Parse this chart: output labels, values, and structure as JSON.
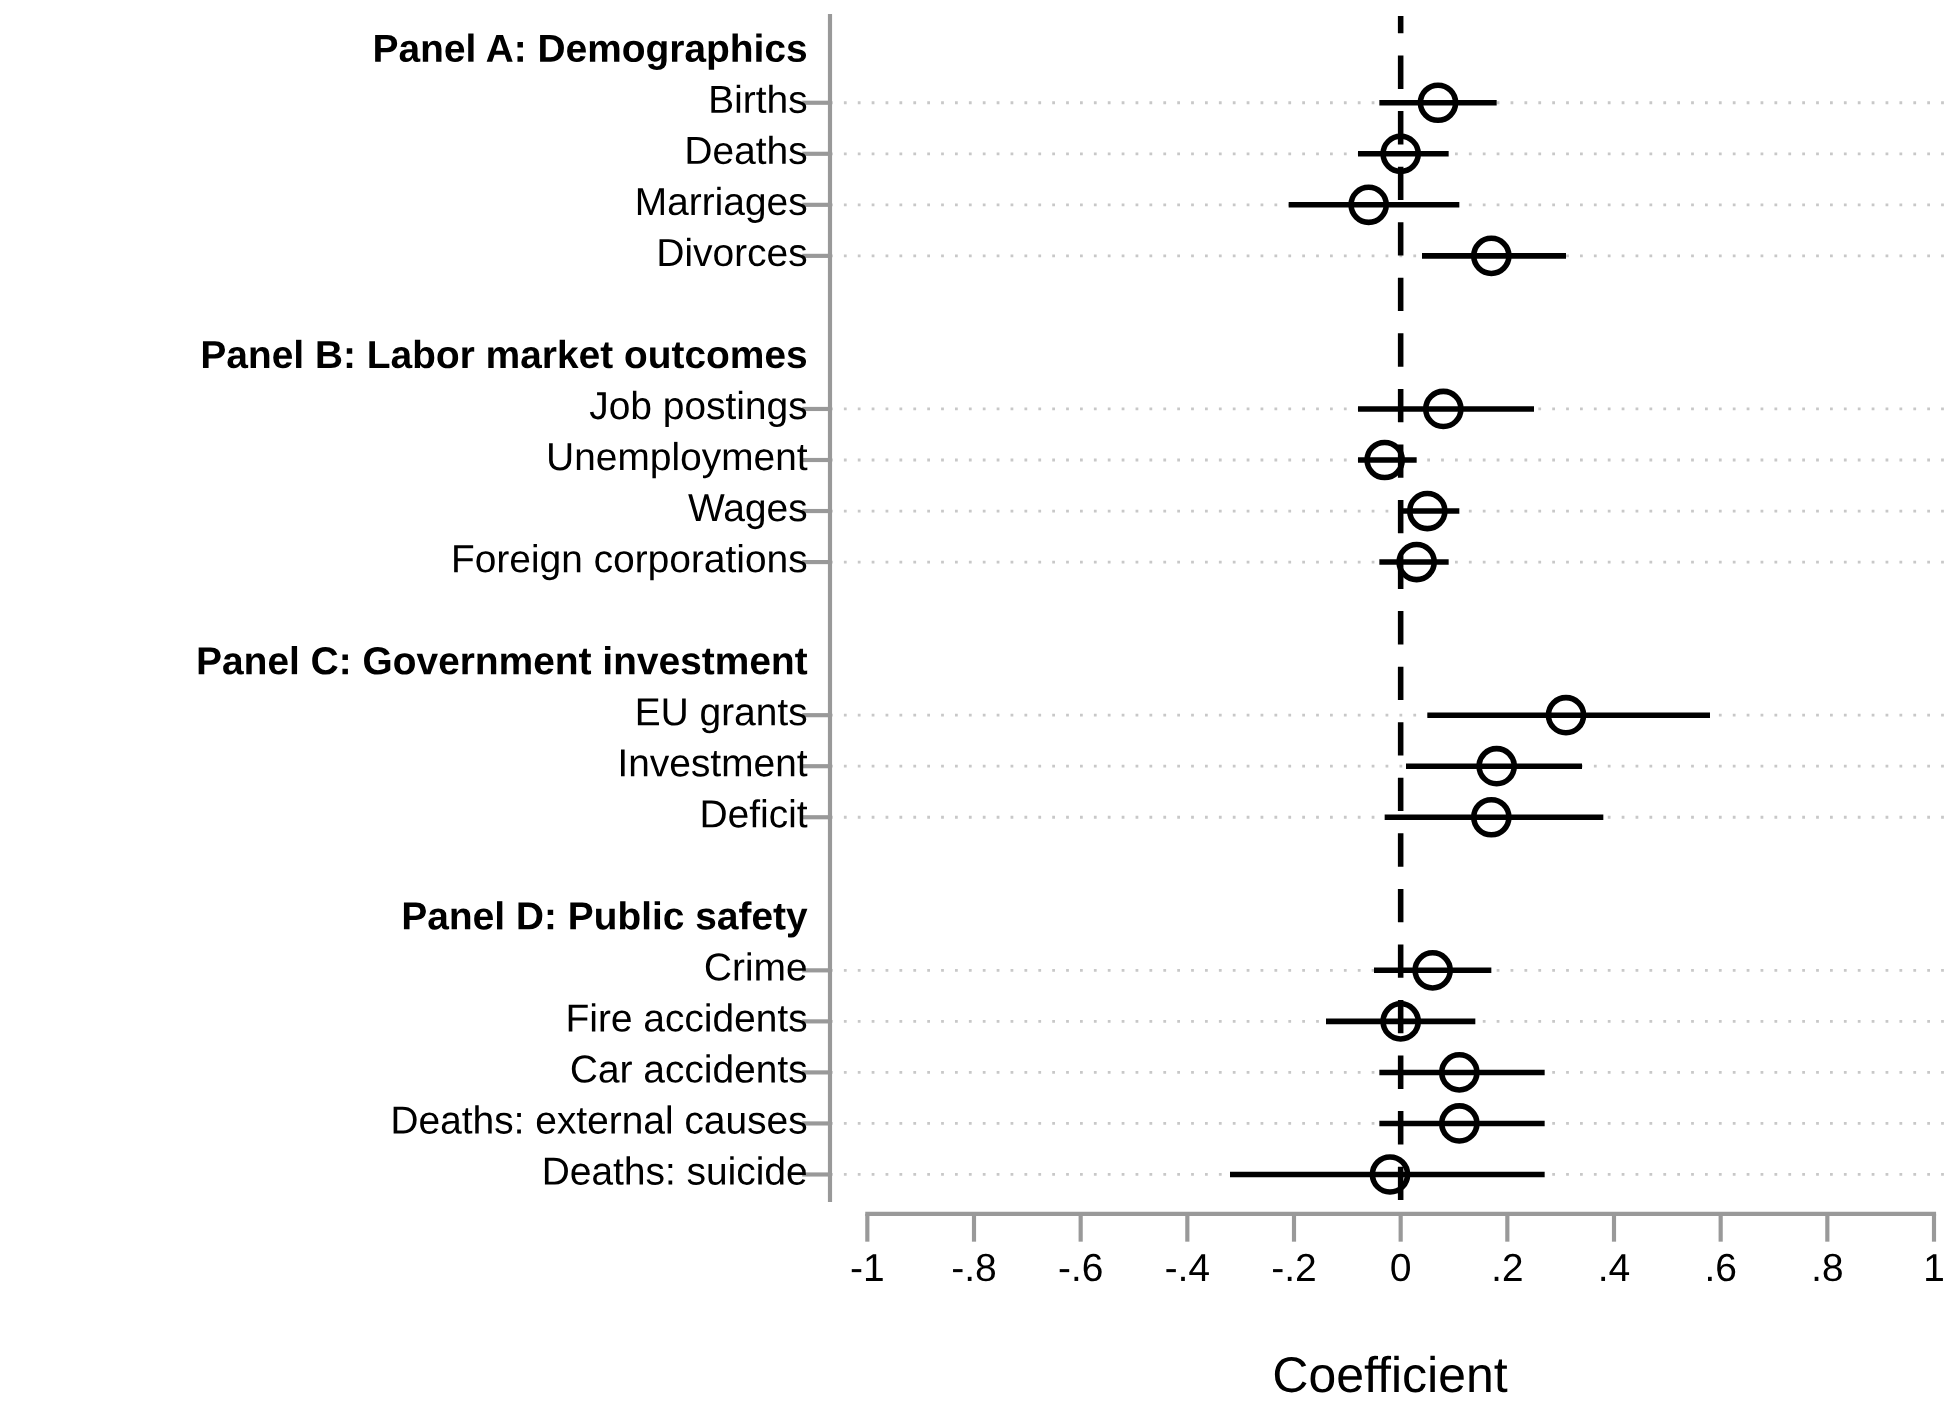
{
  "chart_data": {
    "type": "scatter",
    "orientation": "horizontal",
    "xlabel": "Coefficient",
    "categories": [
      "Panel A: Demographics",
      "Births",
      "Deaths",
      "Marriages",
      "Divorces",
      null,
      "Panel B: Labor market outcomes",
      "Job postings",
      "Unemployment",
      "Wages",
      "Foreign corporations",
      null,
      "Panel C: Government investment",
      "EU grants",
      "Investment",
      "Deficit",
      null,
      "Panel D: Public safety",
      "Crime",
      "Fire accidents",
      "Car accidents",
      "Deaths: external causes",
      "Deaths: suicide"
    ],
    "series": [
      {
        "color": "#000000",
        "values": [
          null,
          0.07,
          0.0,
          -0.06,
          0.17,
          null,
          null,
          0.08,
          -0.03,
          0.05,
          0.03,
          null,
          null,
          0.31,
          0.18,
          0.17,
          null,
          null,
          0.06,
          0.0,
          0.11,
          0.11,
          -0.02
        ],
        "errors": [
          null,
          [
            -0.04,
            0.18
          ],
          [
            -0.08,
            0.09
          ],
          [
            -0.21,
            0.11
          ],
          [
            0.04,
            0.31
          ],
          null,
          null,
          [
            -0.08,
            0.25
          ],
          [
            -0.08,
            0.03
          ],
          [
            0.0,
            0.11
          ],
          [
            -0.04,
            0.09
          ],
          null,
          null,
          [
            0.05,
            0.58
          ],
          [
            0.01,
            0.34
          ],
          [
            -0.03,
            0.38
          ],
          null,
          null,
          [
            -0.05,
            0.17
          ],
          [
            -0.14,
            0.14
          ],
          [
            -0.04,
            0.27
          ],
          [
            -0.04,
            0.27
          ],
          [
            -0.32,
            0.27
          ]
        ]
      }
    ],
    "xlim": [
      -1.07,
      1.03
    ],
    "xticks": [
      {
        "value": -1,
        "label": "-1"
      },
      {
        "value": -0.8,
        "label": "-.8"
      },
      {
        "value": -0.6,
        "label": "-.6"
      },
      {
        "value": -0.4,
        "label": "-.4"
      },
      {
        "value": -0.2,
        "label": "-.2"
      },
      0,
      {
        "value": 0.2,
        "label": ".2"
      },
      {
        "value": 0.4,
        "label": ".4"
      },
      {
        "value": 0.6,
        "label": ".6"
      },
      {
        "value": 0.8,
        "label": ".8"
      },
      1
    ],
    "ref_lines": [
      {
        "axis": "x",
        "value": 0,
        "color": "#000000",
        "line_style": "dashed"
      }
    ],
    "grid": "y",
    "marker": "circle",
    "legend": false
  }
}
